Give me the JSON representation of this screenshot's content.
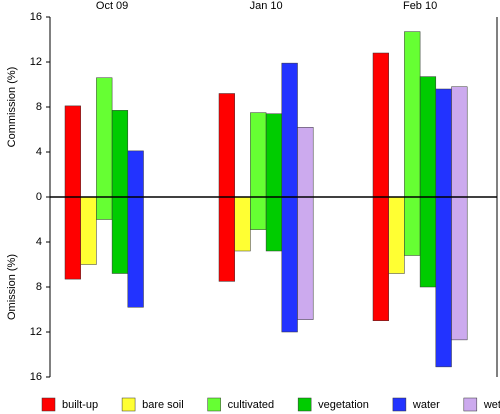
{
  "chart_data": {
    "type": "bar",
    "categories": [
      "Oct 09",
      "Jan 10",
      "Feb 10"
    ],
    "y_label_upper": "Commission (%)",
    "y_label_lower": "Omission (%)",
    "ylim": [
      -16,
      16
    ],
    "yticks": [
      {
        "value": -16,
        "label": "16"
      },
      {
        "value": -12,
        "label": "12"
      },
      {
        "value": -8,
        "label": "8"
      },
      {
        "value": -4,
        "label": "4"
      },
      0,
      4,
      8,
      12,
      16
    ],
    "legend": "bottom",
    "series": [
      {
        "name": "built-up",
        "color": "#ff0000",
        "commission": [
          8.1,
          9.2,
          12.8
        ],
        "omission": [
          -7.3,
          -7.5,
          -11.0
        ]
      },
      {
        "name": "bare soil",
        "color": "#ffff33",
        "commission": [
          0,
          0,
          0
        ],
        "omission": [
          -6.0,
          -4.8,
          -6.8
        ]
      },
      {
        "name": "cultivated",
        "color": "#66ff33",
        "commission": [
          10.6,
          7.5,
          14.7
        ],
        "omission": [
          -2.0,
          -2.9,
          -5.2
        ]
      },
      {
        "name": "vegetation",
        "color": "#00cc00",
        "commission": [
          7.7,
          7.4,
          10.7
        ],
        "omission": [
          -6.8,
          -4.8,
          -8.0
        ]
      },
      {
        "name": "water",
        "color": "#2233ff",
        "commission": [
          4.1,
          11.9,
          9.6
        ],
        "omission": [
          -9.8,
          -12.0,
          -15.1
        ]
      },
      {
        "name": "wetland",
        "color": "#ccaaee",
        "commission": [
          null,
          6.2,
          9.8
        ],
        "omission": [
          null,
          -10.9,
          -12.7
        ]
      }
    ]
  }
}
